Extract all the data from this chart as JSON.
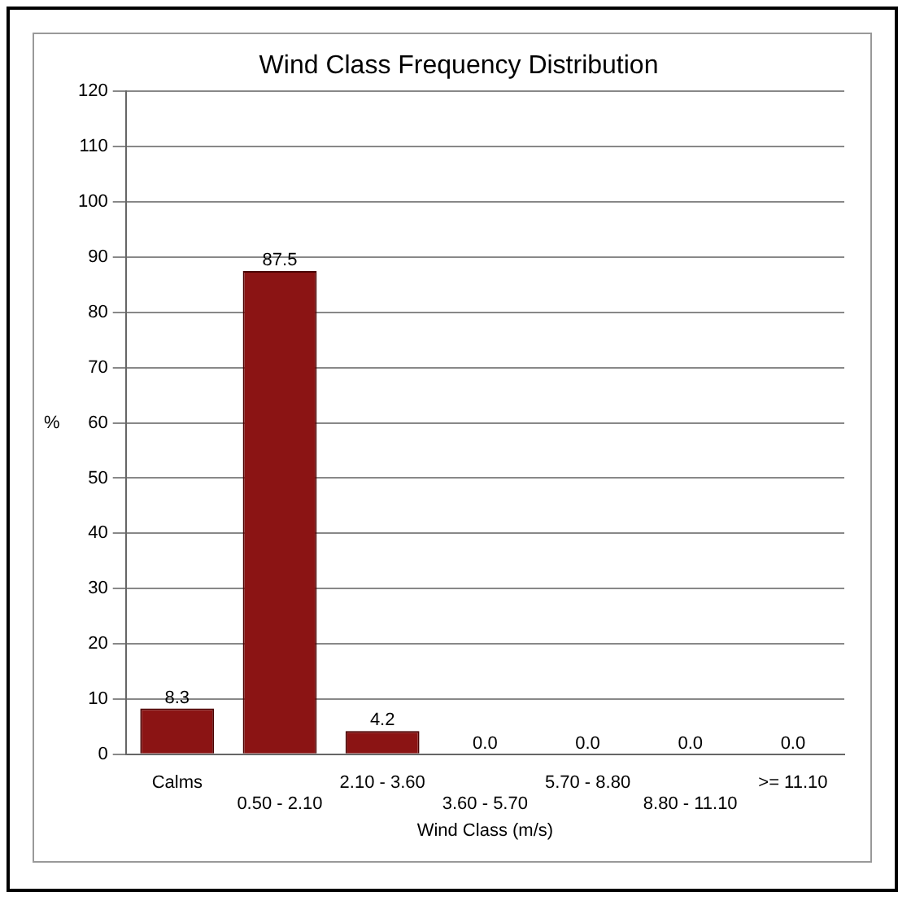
{
  "chart_data": {
    "type": "bar",
    "title": "Wind Class Frequency Distribution",
    "xlabel": "Wind Class (m/s)",
    "ylabel": "%",
    "categories": [
      "Calms",
      "0.50 - 2.10",
      "2.10 - 3.60",
      "3.60 - 5.70",
      "5.70 - 8.80",
      "8.80 - 11.10",
      ">= 11.10"
    ],
    "values": [
      8.3,
      87.5,
      4.2,
      0,
      0,
      0,
      0
    ],
    "value_labels": [
      "8.3",
      "87.5",
      "4.2",
      "0.0",
      "0.0",
      "0.0",
      "0.0"
    ],
    "color": "#8b1414",
    "ylim": [
      0,
      120
    ],
    "yticks": [
      0,
      10,
      20,
      30,
      40,
      50,
      60,
      70,
      80,
      90,
      100,
      110,
      120
    ],
    "grid": "y",
    "legend": false
  }
}
